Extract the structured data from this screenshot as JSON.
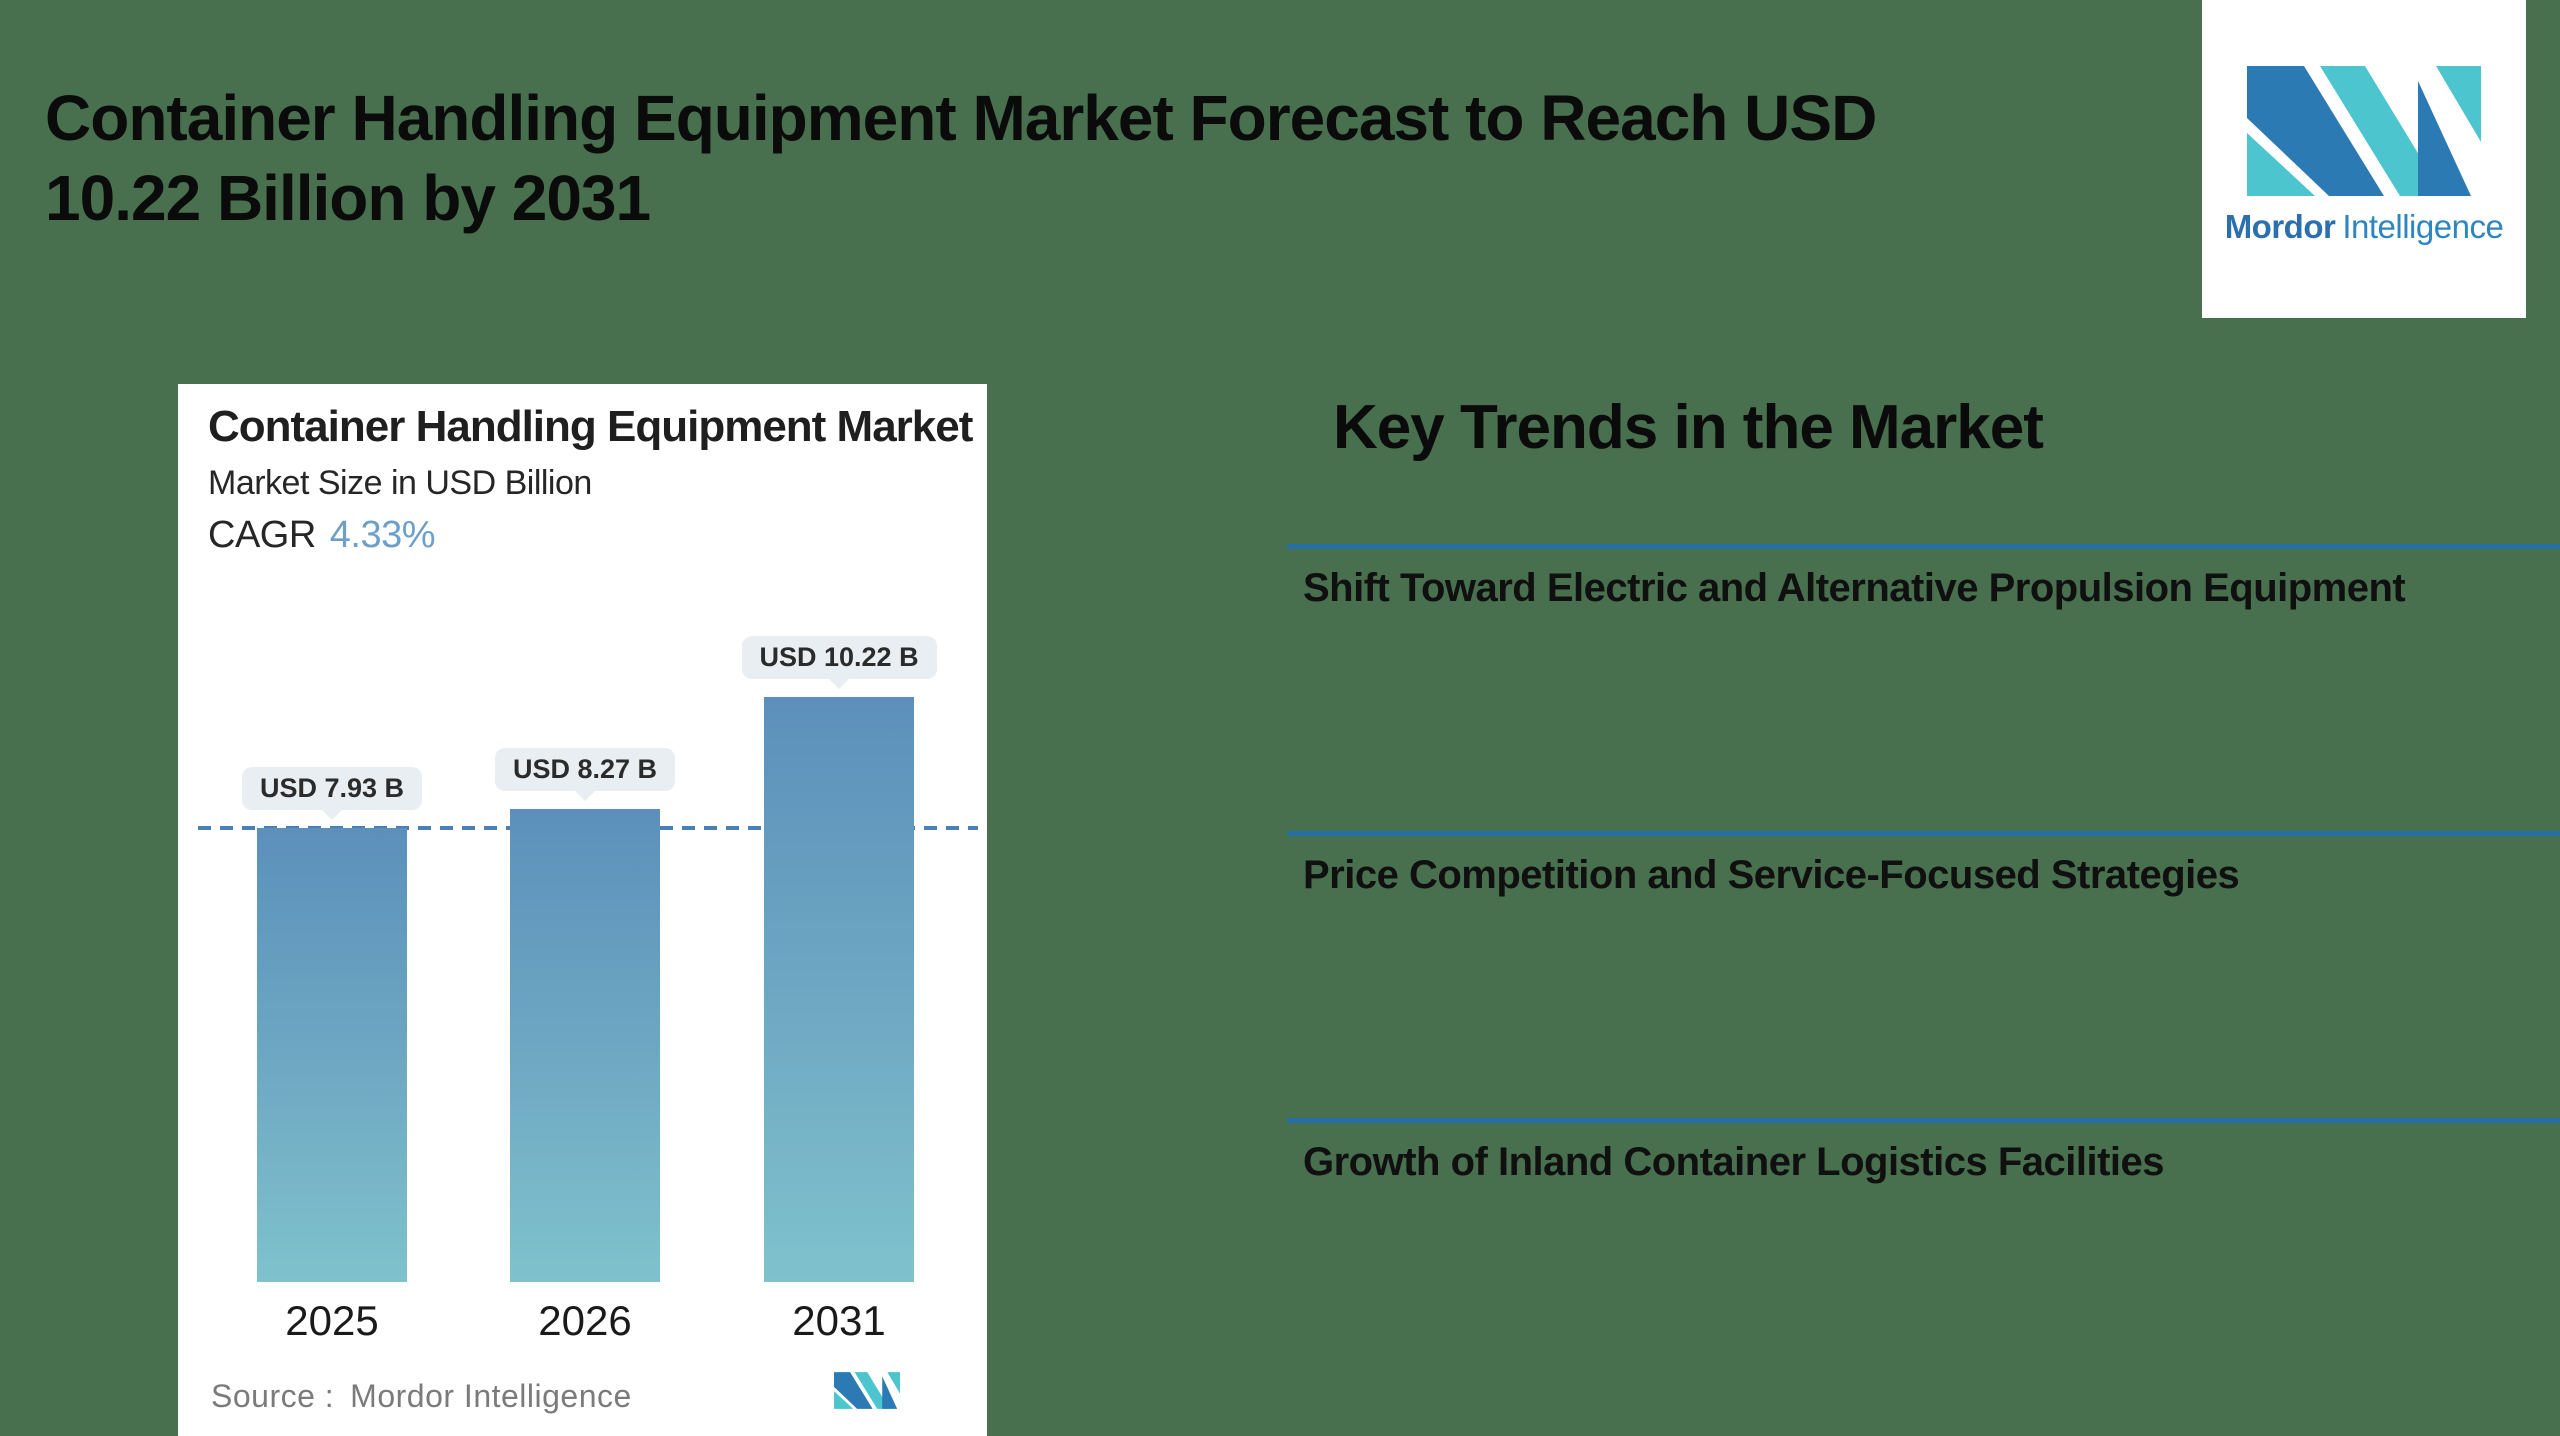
{
  "header": {
    "title_line1": "Container Handling Equipment Market Forecast to Reach USD",
    "title_line2": "10.22 Billion by 2031"
  },
  "brand_logo": {
    "name_bold": "Mordor",
    "name_light": "Intelligence",
    "mark_blue": "#2B7AB3",
    "mark_teal": "#4CC5CE"
  },
  "icons": {
    "brand_mark": "mordor-intelligence-m"
  },
  "chart_card": {
    "title": "Container Handling Equipment Market",
    "subtitle": "Market Size in USD Billion",
    "cagr_label": "CAGR",
    "cagr_value": "4.33%",
    "source_label": "Source :",
    "source_value": "Mordor Intelligence"
  },
  "chart_data": {
    "type": "bar",
    "title": "Container Handling Equipment Market",
    "ylabel": "Market Size in USD Billion",
    "cagr_percent": 4.33,
    "categories": [
      "2025",
      "2026",
      "2031"
    ],
    "values": [
      7.93,
      8.27,
      10.22
    ],
    "value_labels": [
      "USD 7.93 B",
      "USD 8.27 B",
      "USD 10.22 B"
    ],
    "unit": "USD Billion",
    "reference_line_value": 7.93,
    "ylim": [
      0,
      10.22
    ],
    "grid": false,
    "legend": false
  },
  "key_trends": {
    "heading": "Key Trends in the Market",
    "items": [
      "Shift Toward Electric and Alternative Propulsion Equipment",
      "Price Competition and Service-Focused Strategies",
      "Growth of Inland Container Logistics Facilities"
    ]
  },
  "colors": {
    "background": "#48704E",
    "card_bg": "#FFFFFF",
    "bar_top": "#5C90BB",
    "bar_bottom": "#7FC2CC",
    "dashed_line": "#4B80B4",
    "separator": "#256FA5",
    "tooltip_bg": "#E8EEF1",
    "cagr_accent": "#6E9FC9",
    "source_text": "#7B7B7B",
    "headline_text": "#0B0B0B"
  }
}
